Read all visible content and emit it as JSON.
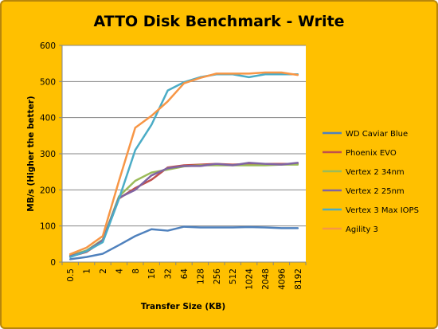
{
  "chart_data": {
    "type": "line",
    "title": "ATTO Disk Benchmark - Write",
    "xlabel": "Transfer Size (KB)",
    "ylabel": "MB/s (Higher the better)",
    "ylim": [
      0,
      600
    ],
    "yticks": [
      0,
      100,
      200,
      300,
      400,
      500,
      600
    ],
    "grid": true,
    "legend_position": "right",
    "categories": [
      "0.5",
      "1",
      "2",
      "4",
      "8",
      "16",
      "32",
      "64",
      "128",
      "256",
      "512",
      "1024",
      "2048",
      "4096",
      "8192"
    ],
    "series": [
      {
        "name": "WD Caviar Blue",
        "color": "#4f81bd",
        "values": [
          8,
          14,
          23,
          47,
          72,
          91,
          87,
          98,
          96,
          96,
          96,
          97,
          96,
          94,
          94
        ]
      },
      {
        "name": "Phoenix EVO",
        "color": "#c0504d",
        "values": [
          15,
          28,
          58,
          176,
          205,
          228,
          262,
          268,
          270,
          272,
          270,
          272,
          272,
          272,
          272
        ]
      },
      {
        "name": "Vertex 2 34nm",
        "color": "#9bbb59",
        "values": [
          18,
          32,
          62,
          182,
          225,
          248,
          256,
          265,
          268,
          268,
          268,
          268,
          268,
          270,
          270
        ]
      },
      {
        "name": "Vertex 2 25nm",
        "color": "#8064a2",
        "values": [
          16,
          30,
          60,
          178,
          200,
          240,
          260,
          266,
          266,
          272,
          268,
          275,
          272,
          270,
          275
        ]
      },
      {
        "name": "Vertex 3 Max IOPS",
        "color": "#4bacc6",
        "values": [
          14,
          30,
          55,
          175,
          310,
          380,
          475,
          498,
          512,
          520,
          520,
          512,
          520,
          520,
          520
        ]
      },
      {
        "name": "Agility 3",
        "color": "#f79646",
        "values": [
          22,
          40,
          72,
          225,
          372,
          405,
          445,
          495,
          510,
          522,
          522,
          522,
          525,
          525,
          518
        ]
      }
    ]
  }
}
